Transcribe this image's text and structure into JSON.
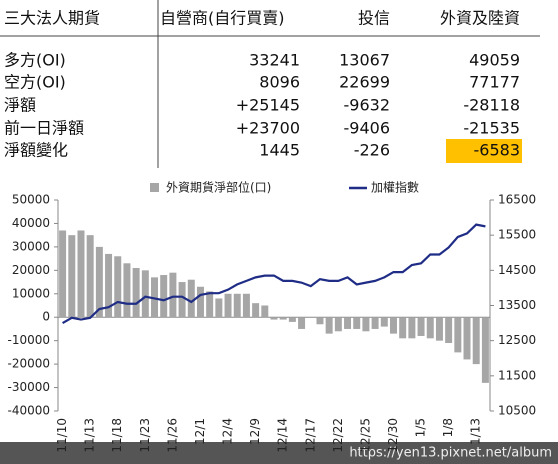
{
  "table": {
    "header": [
      "三大法人期貨",
      "自營商(自行買賣)",
      "投信",
      "外資及陸資"
    ],
    "rows": [
      [
        "多方(OI)",
        "33241",
        "13067",
        "49059"
      ],
      [
        "空方(OI)",
        "8096",
        "22699",
        "77177"
      ],
      [
        "淨額",
        "+25145",
        "-9632",
        "-28118"
      ],
      [
        "前一日淨額",
        "+23700",
        "-9406",
        "-21535"
      ],
      [
        "淨額變化",
        "1445",
        "-226",
        "-6583"
      ]
    ]
  },
  "chart_data": {
    "type": "bar_line",
    "categories": [
      "11/10",
      null,
      null,
      "11/13",
      null,
      null,
      "11/18",
      null,
      null,
      "11/23",
      null,
      null,
      "11/26",
      null,
      null,
      "12/1",
      null,
      null,
      "12/4",
      null,
      null,
      "12/9",
      null,
      null,
      "12/14",
      null,
      null,
      "12/17",
      null,
      null,
      "12/22",
      null,
      null,
      "12/25",
      null,
      null,
      "12/30",
      null,
      null,
      "1/5",
      null,
      null,
      "1/8",
      null,
      null,
      "1/13",
      null
    ],
    "series": [
      {
        "name": "外資期貨淨部位(口)",
        "type": "bar",
        "color": "#a6a6a6",
        "values": [
          37000,
          35000,
          37000,
          35000,
          30000,
          27000,
          26000,
          23000,
          21000,
          20000,
          17000,
          18000,
          19000,
          15000,
          16000,
          13000,
          11000,
          8000,
          10000,
          10000,
          10000,
          6000,
          5000,
          -1000,
          -1000,
          -2000,
          -5000,
          0,
          -3000,
          -7000,
          -6000,
          -5000,
          -5000,
          -6000,
          -5000,
          -4000,
          -7000,
          -9000,
          -9000,
          -8000,
          -9000,
          -10000,
          -11000,
          -15000,
          -18000,
          -20000,
          -28000
        ]
      },
      {
        "name": "加權指數",
        "type": "line",
        "axis": "y2",
        "color": "#1f2d86",
        "values": [
          13000,
          13150,
          13100,
          13150,
          13400,
          13450,
          13600,
          13550,
          13550,
          13750,
          13700,
          13650,
          13750,
          13750,
          13600,
          13800,
          13850,
          13850,
          13950,
          14100,
          14200,
          14300,
          14350,
          14350,
          14200,
          14200,
          14150,
          14050,
          14250,
          14200,
          14200,
          14300,
          14100,
          14150,
          14200,
          14300,
          14450,
          14450,
          14650,
          14700,
          14950,
          14950,
          15150,
          15450,
          15550,
          15800,
          15750
        ]
      }
    ],
    "ylim": [
      -40000,
      50000
    ],
    "yticks": [
      -40000,
      -30000,
      -20000,
      -10000,
      0,
      10000,
      20000,
      30000,
      40000,
      50000
    ],
    "y2lim": [
      10500,
      16500
    ],
    "y2ticks": [
      10500,
      11500,
      12500,
      13500,
      14500,
      15500,
      16500
    ]
  },
  "watermark": "https://yen13.pixnet.net/album"
}
